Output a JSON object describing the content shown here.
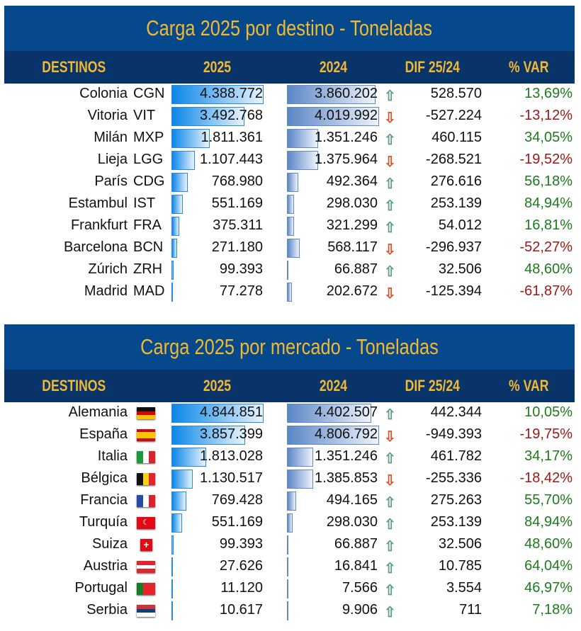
{
  "headers": {
    "col_name": "DESTINOS",
    "col_2025": "2025",
    "col_2024": "2024",
    "col_dif": "DIF 25/24",
    "col_var": "% VAR"
  },
  "colors": {
    "up": "#5f9e86",
    "down": "#d9532c",
    "positive": "#1d7a1d",
    "negative": "#a01818",
    "title_bg": "#05498c",
    "title_text": "#f3b830"
  },
  "destino": {
    "title": "Carga 2025 por destino - Toneladas",
    "max": 4388772,
    "max2": 4019992,
    "rows": [
      {
        "name": "Colonia",
        "code": "CGN",
        "v2025": "4.388.772",
        "n2025": 4388772,
        "v2024": "3.860.202",
        "n2024": 3860202,
        "trend": "up",
        "dif": "528.570",
        "var": "13,69%"
      },
      {
        "name": "Vitoria",
        "code": "VIT",
        "v2025": "3.492.768",
        "n2025": 3492768,
        "v2024": "4.019.992",
        "n2024": 4019992,
        "trend": "down",
        "dif": "-527.224",
        "var": "-13,12%"
      },
      {
        "name": "Milán",
        "code": "MXP",
        "v2025": "1.811.361",
        "n2025": 1811361,
        "v2024": "1.351.246",
        "n2024": 1351246,
        "trend": "up",
        "dif": "460.115",
        "var": "34,05%"
      },
      {
        "name": "Lieja",
        "code": "LGG",
        "v2025": "1.107.443",
        "n2025": 1107443,
        "v2024": "1.375.964",
        "n2024": 1375964,
        "trend": "down",
        "dif": "-268.521",
        "var": "-19,52%"
      },
      {
        "name": "París",
        "code": "CDG",
        "v2025": "768.980",
        "n2025": 768980,
        "v2024": "492.364",
        "n2024": 492364,
        "trend": "up",
        "dif": "276.616",
        "var": "56,18%"
      },
      {
        "name": "Estambul",
        "code": "IST",
        "v2025": "551.169",
        "n2025": 551169,
        "v2024": "298.030",
        "n2024": 298030,
        "trend": "up",
        "dif": "253.139",
        "var": "84,94%"
      },
      {
        "name": "Frankfurt",
        "code": "FRA",
        "v2025": "375.311",
        "n2025": 375311,
        "v2024": "321.299",
        "n2024": 321299,
        "trend": "up",
        "dif": "54.012",
        "var": "16,81%"
      },
      {
        "name": "Barcelona",
        "code": "BCN",
        "v2025": "271.180",
        "n2025": 271180,
        "v2024": "568.117",
        "n2024": 568117,
        "trend": "down",
        "dif": "-296.937",
        "var": "-52,27%"
      },
      {
        "name": "Zúrich",
        "code": "ZRH",
        "v2025": "99.393",
        "n2025": 99393,
        "v2024": "66.887",
        "n2024": 66887,
        "trend": "up",
        "dif": "32.506",
        "var": "48,60%"
      },
      {
        "name": "Madrid",
        "code": "MAD",
        "v2025": "77.278",
        "n2025": 77278,
        "v2024": "202.672",
        "n2024": 202672,
        "trend": "down",
        "dif": "-125.394",
        "var": "-61,87%"
      }
    ]
  },
  "mercado": {
    "title": "Carga 2025 por mercado - Toneladas",
    "max": 4844851,
    "max2": 4806792,
    "rows": [
      {
        "name": "Alemania",
        "flag": [
          "#111",
          "#d00",
          "#f5c400"
        ],
        "dir": "col",
        "v2025": "4.844.851",
        "n2025": 4844851,
        "v2024": "4.402.507",
        "n2024": 4402507,
        "trend": "up",
        "dif": "442.344",
        "var": "10,05%"
      },
      {
        "name": "España",
        "flag": [
          "#c60b1e",
          "#ffc400",
          "#ffc400",
          "#c60b1e"
        ],
        "dir": "col",
        "v2025": "3.857.399",
        "n2025": 3857399,
        "v2024": "4.806.792",
        "n2024": 4806792,
        "trend": "down",
        "dif": "-949.393",
        "var": "-19,75%"
      },
      {
        "name": "Italia",
        "flag": [
          "#1a9b3a",
          "#fff",
          "#d9232e"
        ],
        "dir": "row",
        "v2025": "1.813.028",
        "n2025": 1813028,
        "v2024": "1.351.246",
        "n2024": 1351246,
        "trend": "up",
        "dif": "461.782",
        "var": "34,17%"
      },
      {
        "name": "Bélgica",
        "flag": [
          "#111",
          "#f7d117",
          "#e3242b"
        ],
        "dir": "row",
        "v2025": "1.130.517",
        "n2025": 1130517,
        "v2024": "1.385.853",
        "n2024": 1385853,
        "trend": "down",
        "dif": "-255.336",
        "var": "-18,42%"
      },
      {
        "name": "Francia",
        "flag": [
          "#2a4aa8",
          "#fff",
          "#d9232e"
        ],
        "dir": "row",
        "v2025": "769.428",
        "n2025": 769428,
        "v2024": "494.165",
        "n2024": 494165,
        "trend": "up",
        "dif": "275.263",
        "var": "55,70%"
      },
      {
        "name": "Turquía",
        "flag": [
          "#e30a17"
        ],
        "dir": "row",
        "v2025": "551.169",
        "n2025": 551169,
        "v2024": "298.030",
        "n2024": 298030,
        "trend": "up",
        "dif": "253.139",
        "var": "84,94%"
      },
      {
        "name": "Suiza",
        "flag": [
          "#e30a17"
        ],
        "dir": "row",
        "v2025": "99.393",
        "n2025": 99393,
        "v2024": "66.887",
        "n2024": 66887,
        "trend": "up",
        "dif": "32.506",
        "var": "48,60%"
      },
      {
        "name": "Austria",
        "flag": [
          "#e3242b",
          "#fff",
          "#e3242b"
        ],
        "dir": "col",
        "v2025": "27.626",
        "n2025": 27626,
        "v2024": "16.841",
        "n2024": 16841,
        "trend": "up",
        "dif": "10.785",
        "var": "64,04%"
      },
      {
        "name": "Portugal",
        "flag": [
          "#1a7a2a",
          "#e3242b",
          "#e3242b"
        ],
        "dir": "row",
        "v2025": "11.120",
        "n2025": 11120,
        "v2024": "7.566",
        "n2024": 7566,
        "trend": "up",
        "dif": "3.554",
        "var": "46,97%"
      },
      {
        "name": "Serbia",
        "flag": [
          "#c6363c",
          "#0c4076",
          "#fff"
        ],
        "dir": "col",
        "v2025": "10.617",
        "n2025": 10617,
        "v2024": "9.906",
        "n2024": 9906,
        "trend": "up",
        "dif": "711",
        "var": "7,18%"
      }
    ]
  }
}
